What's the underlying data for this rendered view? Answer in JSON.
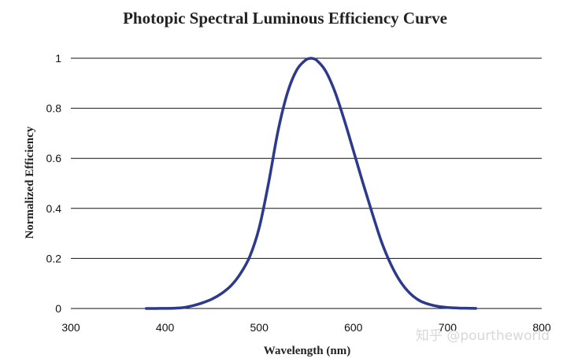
{
  "chart_data": {
    "type": "line",
    "title": "Photopic Spectral Luminous Efficiency Curve",
    "xlabel": "Wavelength (nm)",
    "ylabel": "Normalized Efficiency",
    "xlim": [
      300,
      800
    ],
    "ylim": [
      0,
      1
    ],
    "xticks": [
      300,
      400,
      500,
      600,
      700,
      800
    ],
    "yticks": [
      0,
      0.2,
      0.4,
      0.6,
      0.8,
      1
    ],
    "ytick_labels": [
      "0",
      "0.2",
      "0.4",
      "0.6",
      "0.8",
      "1"
    ],
    "grid": "horizontal",
    "line_color": "#2b3a8c",
    "x": [
      380,
      390,
      400,
      410,
      420,
      430,
      440,
      450,
      460,
      470,
      480,
      490,
      500,
      510,
      520,
      530,
      540,
      550,
      555,
      560,
      570,
      580,
      590,
      600,
      610,
      620,
      630,
      640,
      650,
      660,
      670,
      680,
      690,
      700,
      710,
      720,
      730
    ],
    "values": [
      0.0,
      0.0001,
      0.0004,
      0.0012,
      0.004,
      0.0116,
      0.023,
      0.038,
      0.06,
      0.091,
      0.139,
      0.208,
      0.323,
      0.503,
      0.71,
      0.862,
      0.954,
      0.995,
      1.0,
      0.995,
      0.952,
      0.87,
      0.757,
      0.631,
      0.503,
      0.381,
      0.265,
      0.175,
      0.107,
      0.061,
      0.032,
      0.017,
      0.0082,
      0.0041,
      0.0021,
      0.001,
      0.0005
    ]
  },
  "watermark": "知乎 @pourtheworld"
}
